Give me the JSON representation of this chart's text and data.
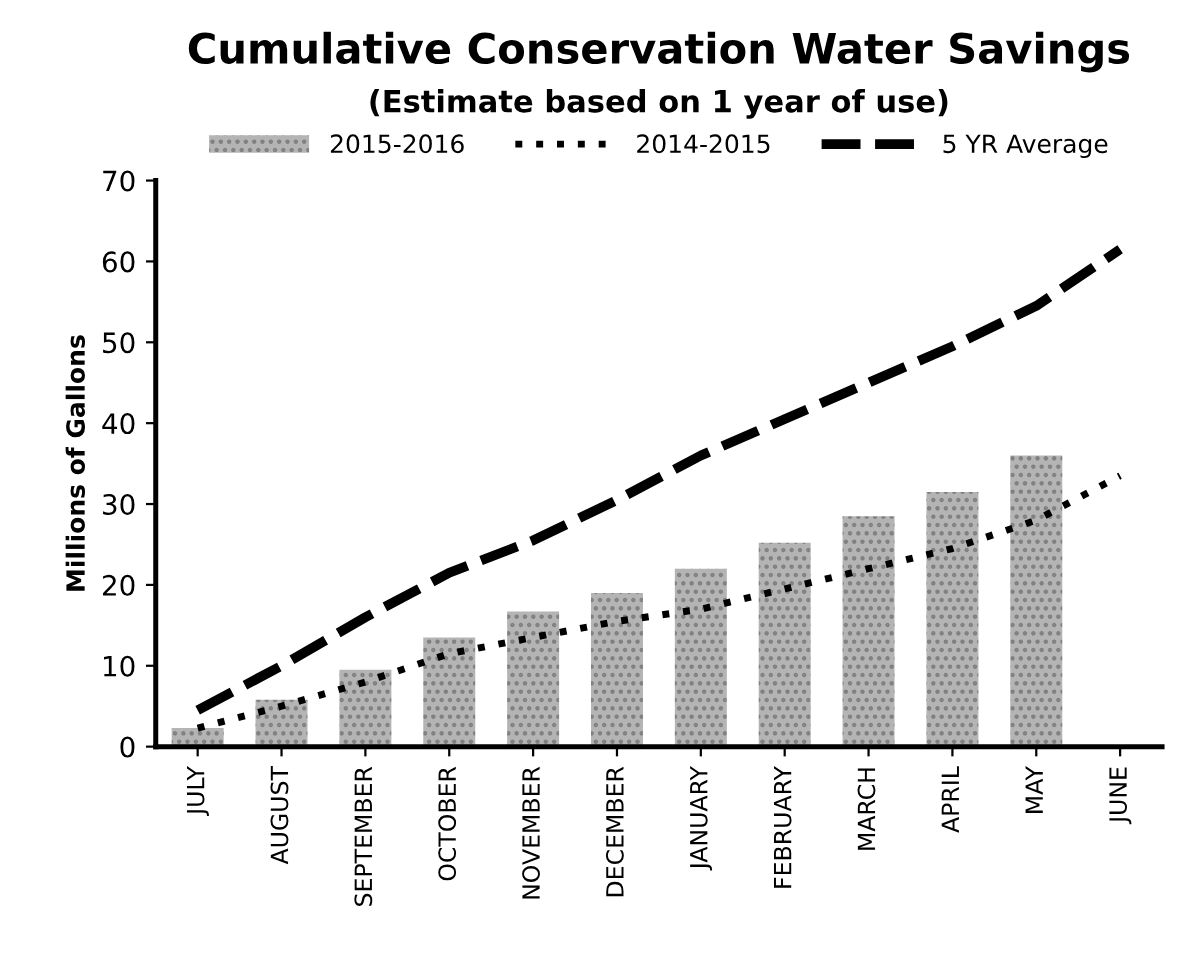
{
  "chart_data": {
    "type": "bar",
    "title": "Cumulative Conservation Water Savings",
    "subtitle": "(Estimate based on 1 year of use)",
    "ylabel": "Millions of Gallons",
    "categories": [
      "JULY",
      "AUGUST",
      "SEPTEMBER",
      "OCTOBER",
      "NOVEMBER",
      "DECEMBER",
      "JANUARY",
      "FEBRUARY",
      "MARCH",
      "APRIL",
      "MAY",
      "JUNE"
    ],
    "series": [
      {
        "name": "2015-2016",
        "color": "#b4b4b4",
        "values": [
          2.3,
          5.8,
          9.5,
          13.5,
          16.7,
          19,
          22,
          25.2,
          28.5,
          31.5,
          36,
          null
        ]
      },
      {
        "name": "2014-2015",
        "type": "line",
        "line_style": "dotted",
        "color": "#000000",
        "values": [
          2.3,
          5,
          8,
          11.5,
          13.5,
          15.5,
          17,
          19.5,
          22,
          24.5,
          28,
          33.5
        ]
      },
      {
        "name": "5 YR Average",
        "type": "line",
        "line_style": "dashed",
        "color": "#000000",
        "values": [
          4.5,
          10,
          16,
          21.5,
          25.5,
          30.5,
          36,
          40.5,
          45,
          49.5,
          54.5,
          61.5
        ]
      }
    ],
    "ylim": [
      0,
      70
    ],
    "yticks": [
      0,
      10,
      20,
      30,
      40,
      50,
      60,
      70
    ],
    "grid": false,
    "legend": "top"
  }
}
